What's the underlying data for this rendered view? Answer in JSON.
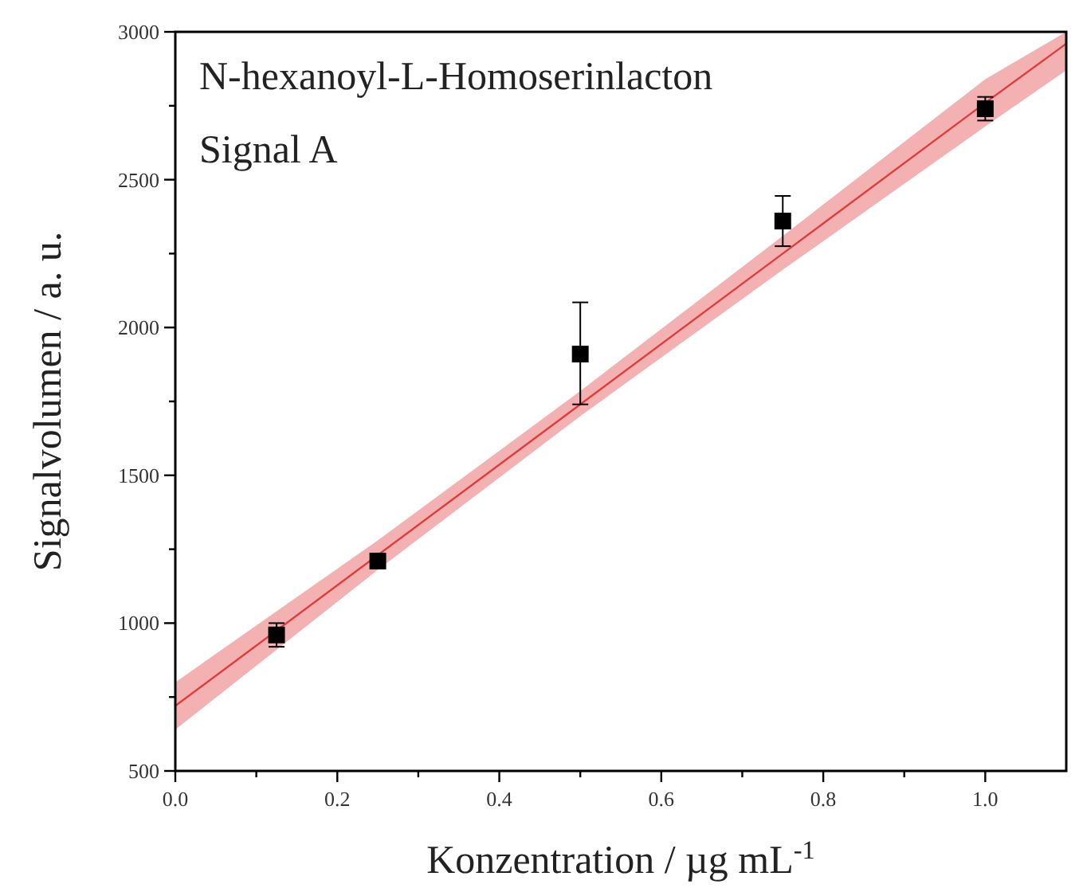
{
  "chart_data": {
    "type": "scatter",
    "xlabel": "Konzentration / µg mL$^{-1}$",
    "ylabel": "Signalvolumen / a. u.",
    "annotations": [
      "N-hexanoyl-L-Homoserinlacton",
      "Signal A"
    ],
    "xlim": [
      0,
      1.1
    ],
    "xticks": [
      {
        "value": 0,
        "label": "0.0"
      },
      {
        "value": 0.1,
        "label": null
      },
      {
        "value": 0.2,
        "label": "0.2"
      },
      {
        "value": 0.3,
        "label": null
      },
      {
        "value": 0.4,
        "label": "0.4"
      },
      {
        "value": 0.5,
        "label": null
      },
      {
        "value": 0.6,
        "label": "0.6"
      },
      {
        "value": 0.7,
        "label": null
      },
      {
        "value": 0.8,
        "label": "0.8"
      },
      {
        "value": 0.9,
        "label": null
      },
      {
        "value": 1.0,
        "label": "1.0"
      }
    ],
    "ylim": [
      500,
      3000
    ],
    "yticks": [
      500,
      {
        "value": 750,
        "label": null
      },
      1000,
      {
        "value": 1250,
        "label": null
      },
      1500,
      {
        "value": 1750,
        "label": null
      },
      2000,
      {
        "value": 2250,
        "label": null
      },
      2500,
      {
        "value": 2750,
        "label": null
      },
      3000
    ],
    "grid": false,
    "series": [
      {
        "type": "line",
        "color": "#e03c3c",
        "x": [
          0,
          0.25,
          0.5,
          0.75,
          1.0,
          1.1
        ],
        "values": [
          720,
          1230,
          1740,
          2250,
          2760,
          2960
        ],
        "lower": [
          640,
          1180,
          1700,
          2195,
          2680,
          2870
        ],
        "upper": [
          800,
          1280,
          1785,
          2310,
          2840,
          3000
        ],
        "marker": "none"
      },
      {
        "color": "#000000",
        "x": [
          0.125,
          0.25,
          0.5,
          0.75,
          1.0
        ],
        "values": [
          960,
          1210,
          1910,
          2360,
          2740
        ],
        "errors": [
          40,
          15,
          [
            1740,
            2085
          ],
          [
            2275,
            2445
          ],
          40
        ],
        "marker": "square"
      }
    ]
  }
}
